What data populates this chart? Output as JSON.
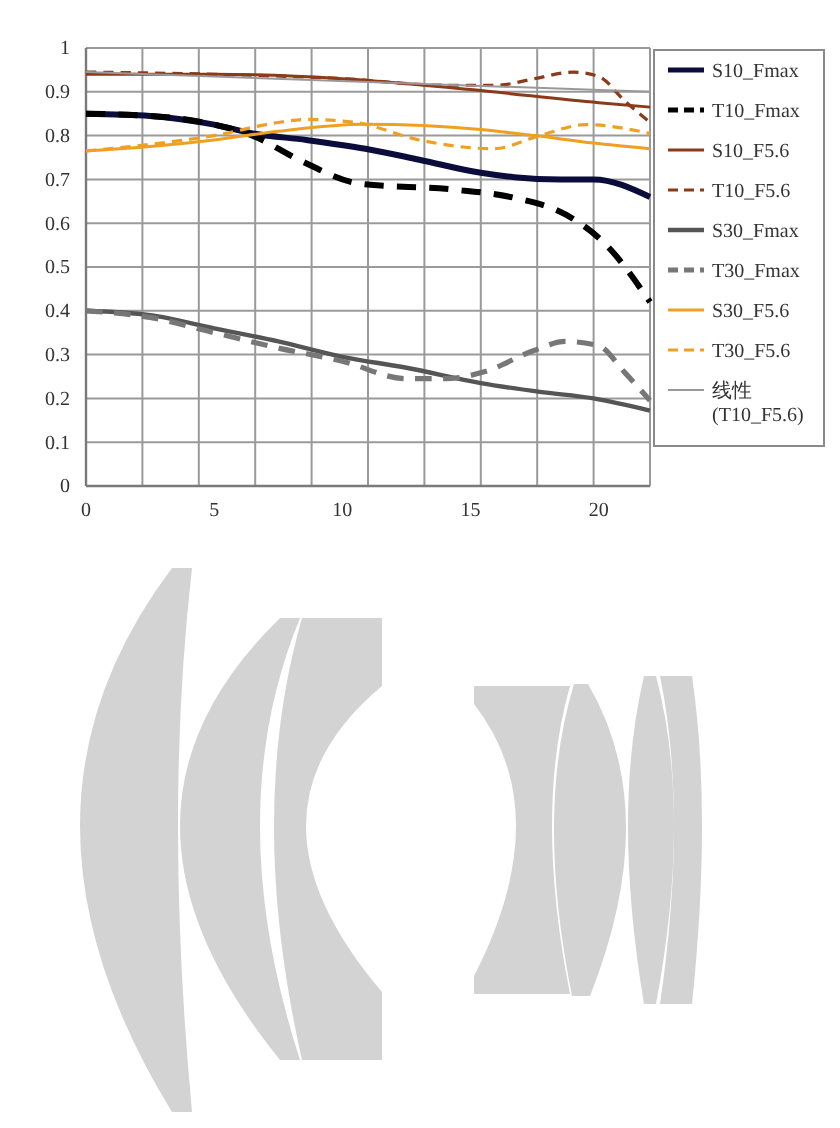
{
  "chart_data": {
    "type": "line",
    "xlim": [
      0,
      22
    ],
    "xticks": [
      0,
      {
        "value": 2.2,
        "label": null
      },
      {
        "value": 4.4,
        "label": null
      },
      5,
      {
        "value": 6.6,
        "label": null
      },
      {
        "value": 8.8,
        "label": null
      },
      10,
      {
        "value": 11,
        "label": null
      },
      {
        "value": 13.2,
        "label": null
      },
      15,
      {
        "value": 15.4,
        "label": null
      },
      {
        "value": 17.6,
        "label": null
      },
      {
        "value": 19.8,
        "label": null
      },
      20,
      {
        "value": 22,
        "label": null
      }
    ],
    "ylim": [
      0,
      1
    ],
    "yticks": [
      0,
      0.1,
      0.2,
      0.3,
      0.4,
      0.5,
      0.6,
      0.7,
      0.8,
      0.9,
      1
    ],
    "grid": true,
    "legend": "right",
    "series": [
      {
        "name": "S10_Fmax",
        "color": "#0b0b3c",
        "line_style": "solid",
        "x": [
          0,
          2.5,
          5,
          6.5,
          8.6,
          10.9,
          13,
          15.4,
          16.7,
          18.5,
          19.8,
          22
        ],
        "values": [
          0.85,
          0.845,
          0.825,
          0.805,
          0.79,
          0.77,
          0.745,
          0.715,
          0.705,
          0.7,
          0.7,
          0.66
        ]
      },
      {
        "name": "T10_Fmax",
        "color": "#000000",
        "line_style": "dashed",
        "x": [
          0,
          2.5,
          5,
          6.5,
          8.3,
          10.7,
          14.3,
          16.7,
          18.7,
          20.3,
          22
        ],
        "values": [
          0.85,
          0.845,
          0.825,
          0.8,
          0.745,
          0.69,
          0.677,
          0.658,
          0.62,
          0.55,
          0.42
        ]
      },
      {
        "name": "S10_F5.6",
        "color": "#8b3a1a",
        "line_style": "solid",
        "x": [
          0,
          5,
          10,
          15,
          20,
          22
        ],
        "values": [
          0.94,
          0.94,
          0.93,
          0.905,
          0.875,
          0.865
        ]
      },
      {
        "name": "T10_F5.6",
        "color": "#8b3a1a",
        "line_style": "dashed",
        "x": [
          0,
          5,
          10,
          14,
          16,
          17.5,
          19,
          20,
          21,
          22
        ],
        "values": [
          0.945,
          0.94,
          0.93,
          0.915,
          0.915,
          0.93,
          0.945,
          0.935,
          0.88,
          0.83
        ]
      },
      {
        "name": "S30_Fmax",
        "color": "#555555",
        "line_style": "solid",
        "x": [
          0,
          2.5,
          5,
          7.5,
          10,
          12.5,
          15.4,
          17.7,
          19.8,
          22
        ],
        "values": [
          0.4,
          0.39,
          0.36,
          0.33,
          0.295,
          0.27,
          0.235,
          0.215,
          0.2,
          0.172
        ]
      },
      {
        "name": "T30_Fmax",
        "color": "#777777",
        "line_style": "dashed",
        "x": [
          0,
          2.5,
          5,
          7.5,
          10,
          12.5,
          14,
          15.5,
          17.5,
          18.7,
          20,
          21,
          22
        ],
        "values": [
          0.4,
          0.385,
          0.35,
          0.315,
          0.285,
          0.245,
          0.245,
          0.26,
          0.31,
          0.33,
          0.32,
          0.26,
          0.195
        ]
      },
      {
        "name": "S30_F5.6",
        "color": "#f0a020",
        "line_style": "solid",
        "x": [
          0,
          2.5,
          5,
          7.5,
          10.9,
          15.4,
          17.5,
          19.8,
          22
        ],
        "values": [
          0.765,
          0.775,
          0.79,
          0.81,
          0.826,
          0.814,
          0.8,
          0.783,
          0.77
        ]
      },
      {
        "name": "T30_F5.6",
        "color": "#f0a020",
        "line_style": "dashed",
        "x": [
          0,
          2.5,
          5,
          7.5,
          8.6,
          10.5,
          13,
          15.9,
          17.7,
          19.5,
          22
        ],
        "values": [
          0.765,
          0.78,
          0.8,
          0.83,
          0.837,
          0.83,
          0.79,
          0.77,
          0.8,
          0.825,
          0.805
        ]
      },
      {
        "name": "线性(T10_F5.6)",
        "color": "#999999",
        "line_style": "solid",
        "x": [
          0,
          22
        ],
        "values": [
          0.945,
          0.9
        ]
      }
    ]
  }
}
